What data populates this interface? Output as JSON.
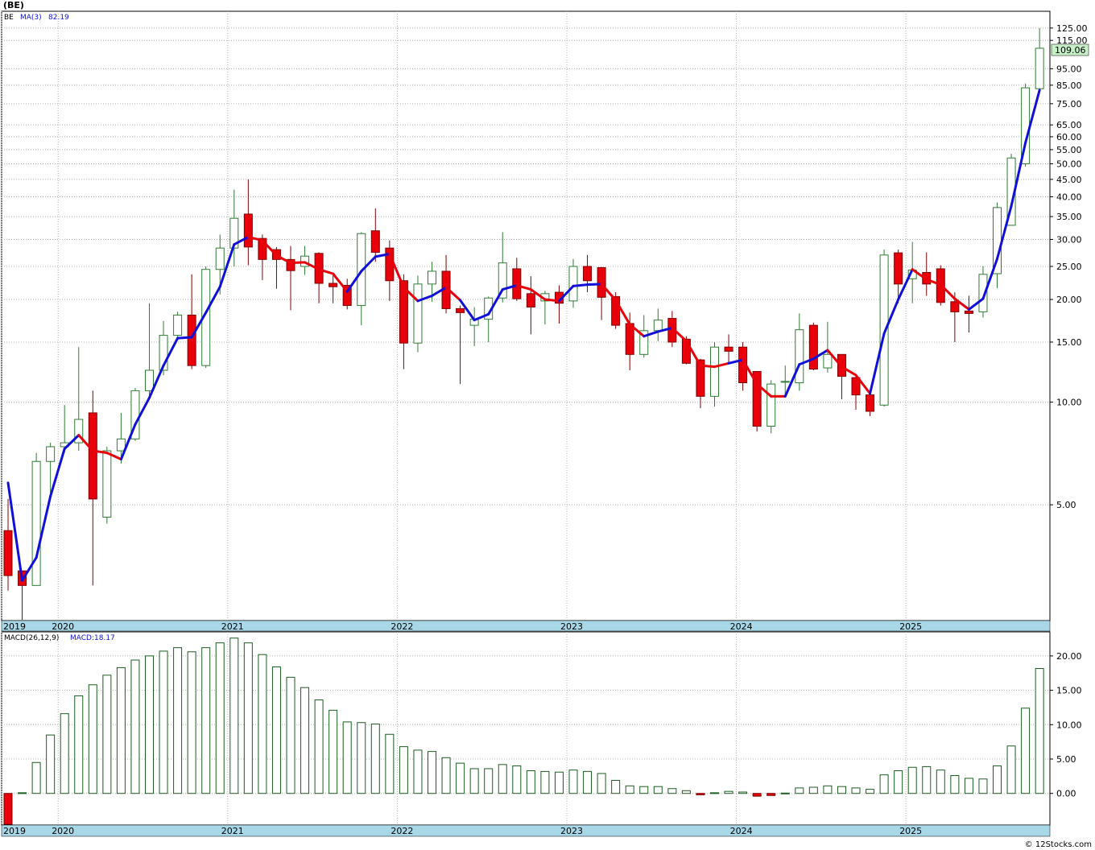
{
  "window_title": "(BE)",
  "footer_credit": "© 12Stocks.com",
  "colors": {
    "up_candle": "#2e7d32",
    "down_candle": "#e8000b",
    "ma_up": "#1010d8",
    "ma_down": "#e8000b",
    "macd_bar": "#1b5e20",
    "macd_neg": "#e8000b",
    "band": "#a8d8e8",
    "price_badge": "#c8f0c8"
  },
  "chart_data": [
    {
      "type": "candlestick",
      "legend": {
        "symbol": "BE",
        "ma_label": "MA(3)",
        "ma_value": "82.19"
      },
      "scale": "log",
      "ylim": [
        2.3,
        140
      ],
      "y_ticks": [
        "125.00",
        "115.00",
        "95.00",
        "85.00",
        "75.00",
        "65.00",
        "60.00",
        "55.00",
        "50.00",
        "45.00",
        "40.00",
        "35.00",
        "30.00",
        "25.00",
        "20.00",
        "15.00",
        "10.00",
        "5.00"
      ],
      "last_price_label": "109.06",
      "x_labels": [
        "2019",
        "2020",
        "2021",
        "2022",
        "2023",
        "2024",
        "2025"
      ],
      "candles": [
        [
          4.2,
          5.2,
          2.8,
          3.1
        ],
        [
          3.2,
          3.2,
          2.3,
          2.9
        ],
        [
          2.9,
          7.1,
          2.9,
          6.7
        ],
        [
          6.7,
          7.6,
          5.2,
          7.4
        ],
        [
          7.4,
          9.8,
          7.1,
          7.6
        ],
        [
          7.6,
          14.5,
          7.2,
          8.9
        ],
        [
          9.3,
          10.8,
          2.9,
          5.2
        ],
        [
          4.6,
          7.4,
          4.4,
          7.2
        ],
        [
          7.2,
          9.3,
          6.6,
          7.8
        ],
        [
          7.8,
          11.0,
          7.7,
          10.8
        ],
        [
          10.8,
          19.5,
          10.3,
          12.4
        ],
        [
          12.4,
          17.3,
          12.0,
          15.7
        ],
        [
          15.7,
          18.4,
          15.5,
          18.0
        ],
        [
          18.0,
          23.7,
          12.5,
          12.8
        ],
        [
          12.8,
          25.0,
          12.6,
          24.5
        ],
        [
          24.5,
          31.0,
          20.7,
          28.3
        ],
        [
          28.3,
          42.0,
          25.0,
          34.6
        ],
        [
          35.6,
          45.0,
          25.2,
          28.5
        ],
        [
          30.2,
          31.0,
          22.8,
          26.2
        ],
        [
          28.0,
          28.5,
          21.5,
          26.2
        ],
        [
          26.2,
          28.7,
          18.6,
          24.3
        ],
        [
          25.0,
          28.7,
          23.6,
          26.8
        ],
        [
          27.3,
          27.5,
          19.5,
          22.3
        ],
        [
          22.3,
          23.5,
          19.5,
          21.8
        ],
        [
          22.0,
          23.0,
          18.7,
          19.2
        ],
        [
          19.2,
          31.5,
          16.8,
          31.2
        ],
        [
          31.8,
          37.0,
          25.8,
          27.5
        ],
        [
          28.3,
          29.8,
          19.8,
          22.7
        ],
        [
          22.7,
          23.7,
          12.5,
          14.9
        ],
        [
          14.9,
          23.5,
          14.0,
          22.2
        ],
        [
          22.2,
          25.8,
          19.7,
          24.2
        ],
        [
          24.2,
          27.0,
          18.2,
          18.8
        ],
        [
          18.8,
          19.2,
          11.3,
          18.3
        ],
        [
          16.8,
          19.0,
          14.6,
          17.5
        ],
        [
          17.5,
          20.4,
          15.0,
          20.2
        ],
        [
          20.2,
          31.5,
          19.6,
          25.6
        ],
        [
          24.6,
          26.5,
          19.8,
          20.1
        ],
        [
          20.8,
          23.4,
          15.8,
          19.0
        ],
        [
          19.8,
          21.2,
          16.9,
          20.8
        ],
        [
          21.0,
          22.0,
          17.0,
          19.5
        ],
        [
          19.8,
          26.3,
          18.9,
          25.0
        ],
        [
          25.0,
          27.0,
          21.0,
          22.7
        ],
        [
          24.8,
          24.9,
          17.4,
          20.3
        ],
        [
          20.4,
          21.0,
          16.4,
          16.8
        ],
        [
          17.0,
          18.3,
          12.4,
          13.8
        ],
        [
          13.8,
          18.0,
          13.5,
          16.2
        ],
        [
          16.2,
          18.8,
          15.1,
          17.4
        ],
        [
          17.6,
          18.5,
          14.5,
          15.0
        ],
        [
          15.3,
          15.6,
          12.9,
          13.0
        ],
        [
          13.3,
          13.4,
          9.6,
          10.4
        ],
        [
          10.4,
          15.0,
          9.7,
          14.5
        ],
        [
          14.5,
          15.8,
          13.0,
          14.1
        ],
        [
          14.5,
          15.0,
          10.8,
          11.4
        ],
        [
          12.3,
          12.3,
          8.2,
          8.5
        ],
        [
          8.5,
          11.6,
          8.1,
          11.3
        ],
        [
          11.5,
          12.8,
          10.3,
          11.5
        ],
        [
          11.4,
          18.2,
          10.8,
          16.3
        ],
        [
          16.8,
          17.1,
          12.4,
          12.5
        ],
        [
          12.6,
          17.2,
          12.2,
          13.8
        ],
        [
          13.8,
          13.8,
          10.2,
          11.9
        ],
        [
          11.8,
          12.1,
          9.5,
          10.5
        ],
        [
          10.5,
          10.6,
          9.1,
          9.4
        ],
        [
          9.8,
          28.0,
          9.7,
          27.0
        ],
        [
          27.4,
          28.0,
          19.5,
          22.2
        ],
        [
          23.0,
          29.5,
          19.5,
          24.4
        ],
        [
          24.0,
          27.5,
          20.5,
          22.2
        ],
        [
          24.6,
          25.2,
          19.2,
          19.6
        ],
        [
          19.7,
          21.0,
          15.0,
          18.4
        ],
        [
          18.5,
          20.5,
          16.0,
          18.2
        ],
        [
          18.4,
          25.0,
          17.7,
          23.7
        ],
        [
          23.8,
          38.5,
          21.6,
          37.2
        ],
        [
          33.0,
          53.5,
          33.0,
          52.0
        ],
        [
          50.0,
          86.0,
          49.0,
          83.5
        ],
        [
          83.0,
          125.0,
          82.0,
          109.06
        ]
      ],
      "ma3": [
        5.8,
        3.0,
        3.5,
        5.3,
        7.3,
        8.0,
        7.2,
        7.1,
        6.8,
        8.6,
        10.3,
        12.8,
        15.4,
        15.5,
        18.3,
        21.8,
        29.0,
        30.5,
        29.8,
        26.9,
        25.6,
        25.7,
        24.5,
        23.8,
        21.1,
        24.2,
        26.7,
        27.2,
        21.7,
        19.8,
        20.5,
        21.7,
        19.9,
        17.4,
        18.1,
        21.4,
        22.0,
        21.4,
        20.0,
        19.8,
        21.9,
        22.1,
        22.2,
        19.9,
        16.9,
        15.6,
        16.1,
        16.5,
        15.1,
        12.8,
        12.7,
        13.0,
        13.3,
        11.3,
        10.4,
        10.4,
        12.9,
        13.4,
        14.2,
        12.7,
        12.0,
        10.6,
        15.9,
        20.0,
        24.5,
        22.9,
        22.1,
        20.1,
        18.7,
        20.1,
        26.3,
        37.6,
        57.6,
        82.19
      ],
      "ma_colors": [
        "dn",
        "up",
        "up",
        "up",
        "up",
        "up",
        "dn",
        "dn",
        "dn",
        "up",
        "up",
        "up",
        "up",
        "up",
        "up",
        "up",
        "up",
        "up",
        "dn",
        "dn",
        "dn",
        "dn",
        "dn",
        "dn",
        "dn",
        "up",
        "up",
        "up",
        "dn",
        "dn",
        "up",
        "up",
        "dn",
        "up",
        "up",
        "up",
        "up",
        "dn",
        "dn",
        "dn",
        "up",
        "up",
        "up",
        "dn",
        "dn",
        "dn",
        "up",
        "up",
        "dn",
        "dn",
        "dn",
        "dn",
        "up",
        "dn",
        "dn",
        "dn",
        "up",
        "up",
        "up",
        "dn",
        "dn",
        "dn",
        "up",
        "up",
        "up",
        "dn",
        "dn",
        "dn",
        "dn",
        "up",
        "up",
        "up",
        "up",
        "up"
      ]
    },
    {
      "type": "bar",
      "legend": {
        "label": "MACD(26,12,9)",
        "value_label": "MACD:18.17"
      },
      "ylim": [
        -4.6,
        23.5
      ],
      "y_ticks": [
        "20.00",
        "15.00",
        "10.00",
        "5.00",
        "0.00"
      ],
      "x_labels": [
        "2019",
        "2020",
        "2021",
        "2022",
        "2023",
        "2024",
        "2025"
      ],
      "values": [
        -4.5,
        0.1,
        4.5,
        8.5,
        11.6,
        14.2,
        15.8,
        17.2,
        18.3,
        19.4,
        20.0,
        20.7,
        21.2,
        20.6,
        21.2,
        21.9,
        22.6,
        21.9,
        20.2,
        18.4,
        16.9,
        15.4,
        13.6,
        12.1,
        10.4,
        10.3,
        10.1,
        8.6,
        6.8,
        6.3,
        6.1,
        5.2,
        4.4,
        3.6,
        3.6,
        4.2,
        4.0,
        3.3,
        3.2,
        3.1,
        3.4,
        3.2,
        2.9,
        1.9,
        1.1,
        1.0,
        1.0,
        0.7,
        0.4,
        -0.2,
        0.1,
        0.3,
        0.2,
        -0.4,
        -0.3,
        0.05,
        0.8,
        0.9,
        1.1,
        1.0,
        0.8,
        0.6,
        2.7,
        3.3,
        3.8,
        3.9,
        3.4,
        2.6,
        2.2,
        2.1,
        4.0,
        6.9,
        12.4,
        18.17
      ]
    }
  ]
}
